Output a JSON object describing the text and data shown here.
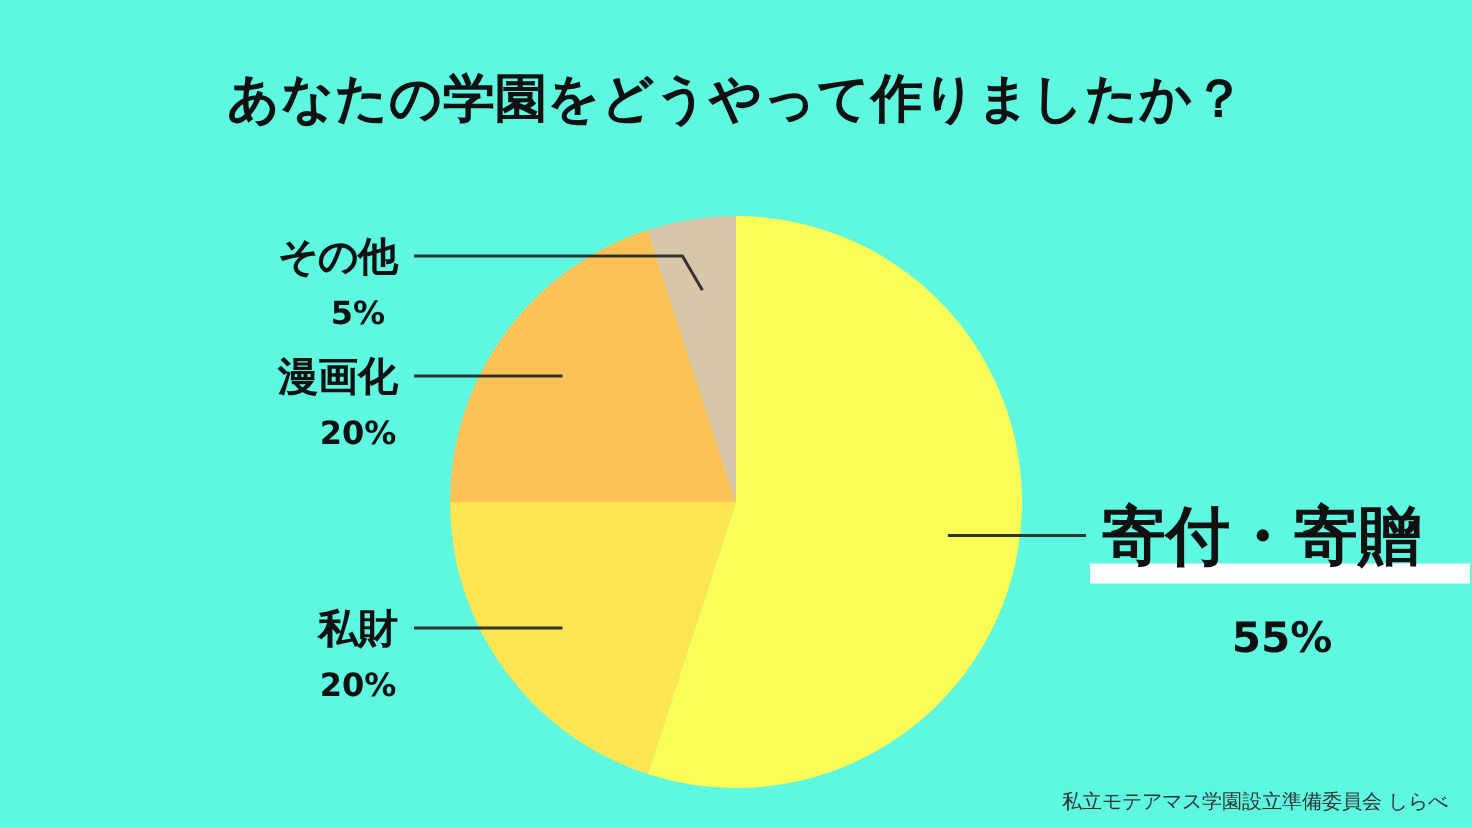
{
  "chart_data": {
    "type": "pie",
    "title": "あなたの学園をどうやって作りましたか？",
    "categories": [
      "寄付・寄贈",
      "私財",
      "漫画化",
      "その他"
    ],
    "values": [
      55,
      20,
      20,
      5
    ],
    "colors": [
      "#f9fd55",
      "#fde652",
      "#fdc256",
      "#d8c6aa"
    ],
    "value_labels": [
      "55%",
      "20%",
      "20%",
      "5%"
    ],
    "annotations": [
      "私立モテアマス学園設立準備委員会 しらべ"
    ]
  }
}
